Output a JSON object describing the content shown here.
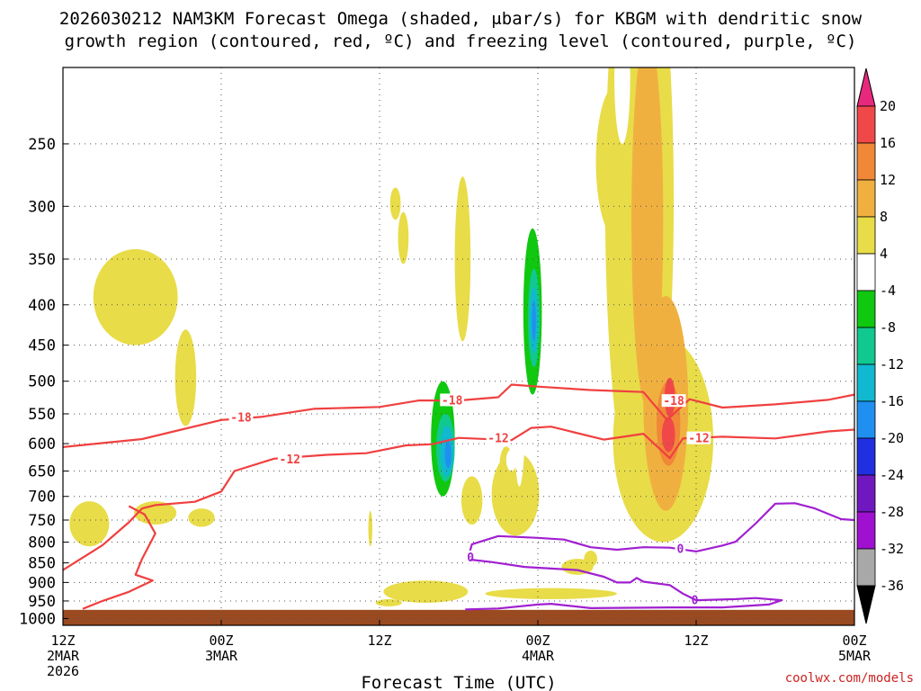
{
  "chart_data": {
    "type": "heatmap",
    "title_line1": "2026030212 NAM3KM Forecast Omega (shaded, μbar/s) for KBGM with dendritic snow",
    "title_line2": "growth region (contoured, red, ºC) and freezing level (contoured, purple, ºC)",
    "xlabel": "Forecast Time (UTC)",
    "ylabel": "",
    "x_range_hours": [
      0,
      60
    ],
    "y_range_hPa": [
      1020,
      200
    ],
    "y_scale": "log",
    "y_ticks": [
      250,
      300,
      350,
      400,
      450,
      500,
      550,
      600,
      650,
      700,
      750,
      800,
      850,
      900,
      950,
      1000
    ],
    "x_ticks": [
      {
        "hour": 0,
        "lines": [
          "12Z",
          "2MAR",
          "2026"
        ]
      },
      {
        "hour": 12,
        "lines": [
          "00Z",
          "3MAR"
        ]
      },
      {
        "hour": 24,
        "lines": [
          "12Z"
        ]
      },
      {
        "hour": 36,
        "lines": [
          "00Z",
          "4MAR"
        ]
      },
      {
        "hour": 48,
        "lines": [
          "12Z"
        ]
      },
      {
        "hour": 60,
        "lines": [
          "00Z",
          "5MAR"
        ]
      }
    ],
    "grid": true,
    "colorbar": {
      "placement": "right",
      "labels": [
        "20",
        "16",
        "12",
        "8",
        "4",
        "-4",
        "-8",
        "-12",
        "-16",
        "-20",
        "-24",
        "-28",
        "-32",
        "-36"
      ],
      "bands": [
        {
          "lo": 20,
          "hi": 24,
          "color": "#e8287c"
        },
        {
          "lo": 16,
          "hi": 20,
          "color": "#f04848"
        },
        {
          "lo": 12,
          "hi": 16,
          "color": "#f08838"
        },
        {
          "lo": 8,
          "hi": 12,
          "color": "#f0b040"
        },
        {
          "lo": 4,
          "hi": 8,
          "color": "#e8dc48"
        },
        {
          "lo": -4,
          "hi": 4,
          "color": "#ffffff"
        },
        {
          "lo": -8,
          "hi": -4,
          "color": "#10c810"
        },
        {
          "lo": -12,
          "hi": -8,
          "color": "#10c890"
        },
        {
          "lo": -16,
          "hi": -12,
          "color": "#10b8d0"
        },
        {
          "lo": -20,
          "hi": -16,
          "color": "#2090f0"
        },
        {
          "lo": -24,
          "hi": -20,
          "color": "#2030e0"
        },
        {
          "lo": -28,
          "hi": -24,
          "color": "#7018c0"
        },
        {
          "lo": -32,
          "hi": -28,
          "color": "#a010d0"
        },
        {
          "lo": -36,
          "hi": -32,
          "color": "#a8a8a8"
        },
        {
          "lo": -40,
          "hi": -36,
          "color": "#000000"
        }
      ]
    },
    "ground": {
      "color": "#9a4a20",
      "top_hPa": 975
    },
    "omega_regions": [
      {
        "v": 4,
        "h": 5.5,
        "p": 395,
        "dh": 3.2,
        "dp": 55
      },
      {
        "v": 4,
        "h": 9.3,
        "p": 500,
        "dh": 0.8,
        "dp": 70
      },
      {
        "v": 4,
        "h": 2.0,
        "p": 760,
        "dh": 1.5,
        "dp": 50
      },
      {
        "v": 4,
        "h": 7.0,
        "p": 735,
        "dh": 1.6,
        "dp": 25
      },
      {
        "v": 4,
        "h": 10.5,
        "p": 745,
        "dh": 1.0,
        "dp": 20
      },
      {
        "v": 4,
        "h": 23.3,
        "p": 770,
        "dh": 0.15,
        "dp": 40
      },
      {
        "v": 4,
        "h": 25.2,
        "p": 298,
        "dh": 0.4,
        "dp": 14
      },
      {
        "v": 4,
        "h": 25.8,
        "p": 330,
        "dh": 0.4,
        "dp": 25
      },
      {
        "v": 4,
        "h": 27.5,
        "p": 925,
        "dh": 3.2,
        "dp": 30
      },
      {
        "v": 4,
        "h": 24.7,
        "p": 955,
        "dh": 1.0,
        "dp": 10
      },
      {
        "v": 4,
        "h": 30.3,
        "p": 360,
        "dh": 0.6,
        "dp": 85
      },
      {
        "v": 4,
        "h": 31.0,
        "p": 710,
        "dh": 0.8,
        "dp": 50
      },
      {
        "v": 4,
        "h": 34.3,
        "p": 700,
        "dh": 1.8,
        "dp": 85
      },
      {
        "v": 4,
        "h": 33.6,
        "p": 640,
        "dh": 0.5,
        "dp": 35
      },
      {
        "v": 4,
        "h": 37.0,
        "p": 930,
        "dh": 5.0,
        "dp": 15
      },
      {
        "v": 4,
        "h": 40.0,
        "p": 840,
        "dh": 0.5,
        "dp": 20
      },
      {
        "v": 4,
        "h": 42.0,
        "p": 270,
        "dh": 1.6,
        "dp": 60
      },
      {
        "v": 4,
        "h": 43.7,
        "p": 420,
        "dh": 2.6,
        "dp": 300
      },
      {
        "v": 4,
        "h": 45.5,
        "p": 620,
        "dh": 3.8,
        "dp": 180
      },
      {
        "v": 4,
        "h": 39.0,
        "p": 860,
        "dh": 1.2,
        "dp": 20
      },
      {
        "v": 8,
        "h": 44.3,
        "p": 360,
        "dh": 1.2,
        "dp": 180
      },
      {
        "v": 8,
        "h": 45.7,
        "p": 560,
        "dh": 1.7,
        "dp": 170
      },
      {
        "v": 12,
        "h": 45.9,
        "p": 570,
        "dh": 0.9,
        "dp": 70
      },
      {
        "v": 16,
        "h": 46.0,
        "p": 525,
        "dh": 0.4,
        "dp": 30
      },
      {
        "v": 16,
        "h": 45.9,
        "p": 585,
        "dh": 0.5,
        "dp": 30
      },
      {
        "v": -4,
        "h": 26.7,
        "p": 575,
        "dh": 0.8,
        "dp": 25
      },
      {
        "v": -4,
        "h": 28.5,
        "p": 550,
        "dh": 1.4,
        "dp": 240
      },
      {
        "v": -4,
        "h": 32.6,
        "p": 405,
        "dh": 1.7,
        "dp": 110
      },
      {
        "v": -4,
        "h": 34.6,
        "p": 380,
        "dh": 0.9,
        "dp": 300
      },
      {
        "v": -4,
        "h": 36.7,
        "p": 350,
        "dh": 0.6,
        "dp": 240
      },
      {
        "v": -4,
        "h": 42.4,
        "p": 210,
        "dh": 0.6,
        "dp": 40
      },
      {
        "v": -4,
        "h": 39.0,
        "p": 690,
        "dh": 0.5,
        "dp": 60
      },
      {
        "v": -4,
        "h": 34.0,
        "p": 630,
        "dh": 0.4,
        "dp": 20
      },
      {
        "v": -4,
        "h": 29.8,
        "p": 670,
        "dh": 0.3,
        "dp": 25
      },
      {
        "v": -4,
        "h": 27.5,
        "p": 600,
        "dh": 0.3,
        "dp": 40
      },
      {
        "v": -4,
        "h": 59.8,
        "p": 755,
        "dh": 0.4,
        "dp": 10
      },
      {
        "v": -8,
        "h": 28.8,
        "p": 600,
        "dh": 0.9,
        "dp": 100
      },
      {
        "v": -8,
        "h": 35.6,
        "p": 420,
        "dh": 0.7,
        "dp": 100
      },
      {
        "v": -12,
        "h": 29.0,
        "p": 610,
        "dh": 0.7,
        "dp": 60
      },
      {
        "v": -12,
        "h": 35.7,
        "p": 420,
        "dh": 0.45,
        "dp": 60
      },
      {
        "v": -16,
        "h": 29.1,
        "p": 615,
        "dh": 0.5,
        "dp": 45
      },
      {
        "v": -16,
        "h": 35.7,
        "p": 420,
        "dh": 0.3,
        "dp": 40
      },
      {
        "v": -20,
        "h": 29.2,
        "p": 620,
        "dh": 0.25,
        "dp": 25
      },
      {
        "v": -20,
        "h": 35.7,
        "p": 420,
        "dh": 0.15,
        "dp": 25
      }
    ],
    "isotherms": [
      {
        "value": -18,
        "color": "#f04040",
        "label": "-18",
        "label_at": [
          [
            13.5,
            555
          ],
          [
            29.5,
            528
          ],
          [
            46.3,
            529
          ]
        ],
        "points": [
          [
            0,
            606
          ],
          [
            6,
            592
          ],
          [
            12,
            560
          ],
          [
            15,
            555
          ],
          [
            19,
            542
          ],
          [
            24,
            539
          ],
          [
            27,
            529
          ],
          [
            30,
            529
          ],
          [
            33,
            524
          ],
          [
            34,
            505
          ],
          [
            36,
            508
          ],
          [
            40,
            513
          ],
          [
            44,
            516
          ],
          [
            45.8,
            560
          ],
          [
            47.5,
            527
          ],
          [
            50,
            540
          ],
          [
            54,
            535
          ],
          [
            58,
            528
          ],
          [
            60,
            520
          ]
        ]
      },
      {
        "value": -12,
        "color": "#f04040",
        "label": "-12",
        "label_at": [
          [
            17.2,
            627
          ],
          [
            33.0,
            590
          ],
          [
            48.2,
            590
          ]
        ],
        "points": [
          [
            0,
            868
          ],
          [
            3,
            807
          ],
          [
            5,
            755
          ],
          [
            6,
            725
          ],
          [
            7,
            718
          ],
          [
            10,
            711
          ],
          [
            12,
            690
          ],
          [
            13,
            650
          ],
          [
            16,
            627
          ],
          [
            20,
            620
          ],
          [
            23,
            617
          ],
          [
            26,
            603
          ],
          [
            28,
            601
          ],
          [
            30,
            590
          ],
          [
            34,
            594
          ],
          [
            35.5,
            573
          ],
          [
            37,
            571
          ],
          [
            41,
            593
          ],
          [
            44,
            583
          ],
          [
            46,
            626
          ],
          [
            47,
            591
          ],
          [
            48,
            590
          ],
          [
            50,
            588
          ],
          [
            54,
            591
          ],
          [
            58,
            579
          ],
          [
            60,
            576
          ]
        ]
      },
      {
        "value": -12,
        "color": "#f04040",
        "label": "",
        "label_at": [],
        "points": [
          [
            5,
            720
          ],
          [
            6.2,
            738
          ],
          [
            7,
            780
          ],
          [
            6,
            840
          ],
          [
            5.5,
            880
          ],
          [
            6.8,
            895
          ],
          [
            5,
            925
          ],
          [
            3,
            950
          ],
          [
            1.5,
            972
          ]
        ]
      },
      {
        "value": 0,
        "color": "#a020d0",
        "label": "0",
        "label_at": [
          [
            30.9,
            835
          ],
          [
            46.8,
            815
          ],
          [
            47.9,
            947
          ]
        ],
        "points": [
          [
            30.8,
            828
          ],
          [
            31,
            805
          ],
          [
            33,
            786
          ],
          [
            36,
            790
          ],
          [
            38,
            794
          ],
          [
            40,
            812
          ],
          [
            42,
            818
          ],
          [
            44,
            812
          ],
          [
            46,
            813
          ],
          [
            48,
            822
          ],
          [
            50,
            808
          ],
          [
            51,
            799
          ],
          [
            52.5,
            758
          ],
          [
            54,
            715
          ],
          [
            55.5,
            714
          ],
          [
            57,
            725
          ],
          [
            59,
            748
          ],
          [
            60,
            750
          ]
        ]
      },
      {
        "value": 0,
        "color": "#a020d0",
        "label": "",
        "label_at": [],
        "points": [
          [
            30.9,
            842
          ],
          [
            32.5,
            848
          ],
          [
            35,
            860
          ],
          [
            39,
            868
          ],
          [
            41,
            885
          ],
          [
            42,
            900
          ],
          [
            43,
            900
          ],
          [
            43.5,
            888
          ],
          [
            44,
            898
          ],
          [
            46,
            907
          ],
          [
            47,
            930
          ],
          [
            48,
            948
          ],
          [
            51,
            945
          ],
          [
            52.5,
            942
          ],
          [
            54.5,
            948
          ],
          [
            53.5,
            960
          ],
          [
            50,
            968
          ],
          [
            46,
            968
          ],
          [
            40,
            970
          ],
          [
            37,
            958
          ],
          [
            36,
            960
          ],
          [
            33,
            971
          ],
          [
            30.5,
            974
          ]
        ]
      }
    ]
  },
  "credit": "coolwx.com/models"
}
